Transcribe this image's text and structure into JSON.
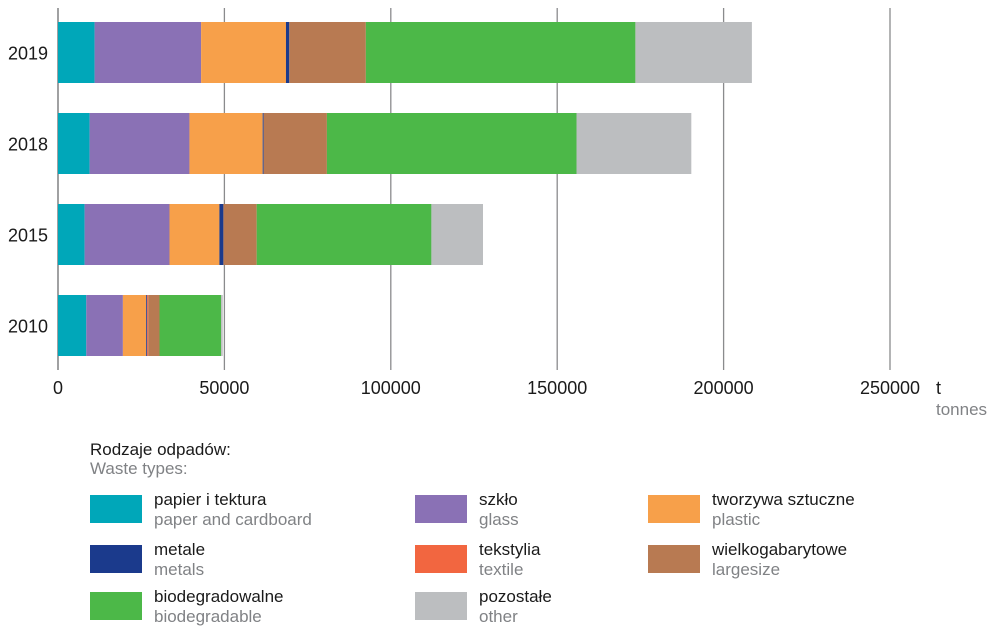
{
  "chart_data": {
    "type": "bar",
    "orientation": "horizontal",
    "stacked": true,
    "categories": [
      "2019",
      "2018",
      "2015",
      "2010"
    ],
    "series": [
      {
        "name": "papier i tektura",
        "name_en": "paper and cardboard",
        "color": "#00a7b9",
        "values": [
          11000,
          9500,
          8000,
          8500
        ]
      },
      {
        "name": "szkło",
        "name_en": "glass",
        "color": "#8a71b5",
        "values": [
          32000,
          30000,
          25500,
          11000
        ]
      },
      {
        "name": "tworzywa sztuczne",
        "name_en": "plastic",
        "color": "#f7a04a",
        "values": [
          25500,
          22000,
          15000,
          7000
        ]
      },
      {
        "name": "metale",
        "name_en": "metals",
        "color": "#1b3a8c",
        "values": [
          1000,
          300,
          1200,
          300
        ]
      },
      {
        "name": "tekstylia",
        "name_en": "textile",
        "color": "#f26640",
        "values": [
          0,
          0,
          0,
          300
        ]
      },
      {
        "name": "wielkogabarytowe",
        "name_en": "largesize",
        "color": "#b87a52",
        "values": [
          23000,
          19000,
          10000,
          3400
        ]
      },
      {
        "name": "biodegradowalne",
        "name_en": "biodegradable",
        "color": "#4cb848",
        "values": [
          81000,
          75000,
          52500,
          18500
        ]
      },
      {
        "name": "pozostałe",
        "name_en": "other",
        "color": "#bcbec0",
        "values": [
          35000,
          34500,
          15500,
          500
        ]
      }
    ],
    "x_ticks": [
      "0",
      "50000",
      "100000",
      "150000",
      "200000",
      "250000"
    ],
    "xlim": [
      0,
      250000
    ],
    "xlabel": "t",
    "xlabel_sub": "tonnes",
    "grid": "vertical",
    "legend_title": "Rodzaje odpadów:",
    "legend_subtitle": "Waste types:",
    "legend_position": "bottom"
  }
}
